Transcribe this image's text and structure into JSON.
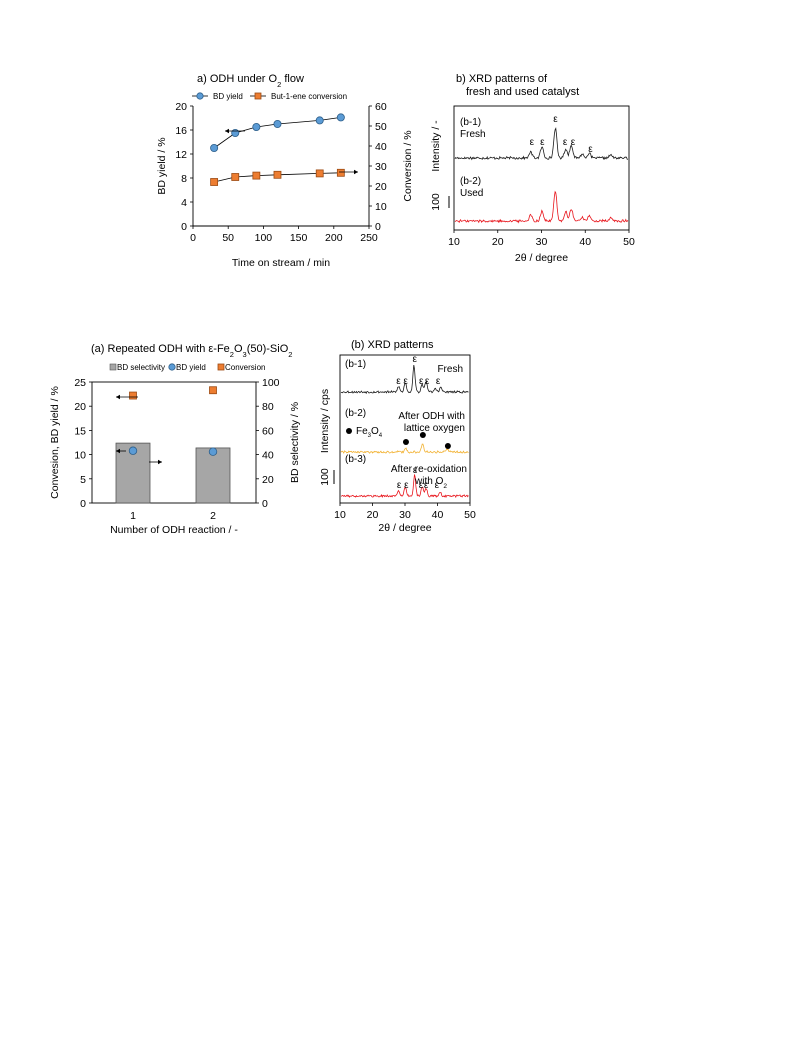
{
  "colors": {
    "blue": "#5b9bd5",
    "blue_stroke": "#2e5f8a",
    "orange": "#ed7d31",
    "orange_stroke": "#9c4a12",
    "bar": "#a6a6a6",
    "black_trace": "#1a1a1a",
    "red_trace": "#e8141b",
    "yellow_trace": "#f2b233",
    "gray_trace": "#555555"
  },
  "chart_data": [
    {
      "id": "top_a",
      "type": "line",
      "title_main": "a) ODH under O",
      "title_sub": "2",
      "title_end": " flow",
      "xlabel": "Time on stream / min",
      "ylabel": "BD yield / %",
      "y2label": "Conversion / %",
      "xlim": [
        0,
        250
      ],
      "xticks": [
        "0",
        "50",
        "100",
        "150",
        "200",
        "250"
      ],
      "ylim": [
        0,
        20
      ],
      "yticks": [
        "0",
        "4",
        "8",
        "12",
        "16",
        "20"
      ],
      "y2lim": [
        0,
        60
      ],
      "y2ticks": [
        "0",
        "10",
        "20",
        "30",
        "40",
        "50",
        "60"
      ],
      "series": [
        {
          "name": "BD yield",
          "axis": "left",
          "marker": "circle",
          "x": [
            30,
            60,
            90,
            120,
            180,
            210
          ],
          "values": [
            13.0,
            15.5,
            16.5,
            17.0,
            17.6,
            18.1
          ]
        },
        {
          "name": "But-1-ene conversion",
          "axis": "right",
          "marker": "square",
          "x": [
            30,
            60,
            90,
            120,
            180,
            210
          ],
          "values": [
            22.0,
            24.5,
            25.2,
            25.6,
            26.3,
            26.6
          ]
        }
      ]
    },
    {
      "id": "top_b",
      "type": "line",
      "title_line1": "b) XRD patterns of",
      "title_line2": "fresh and used catalyst",
      "xlabel": "2θ / degree",
      "ylabel": "Intensity / -",
      "scale_label": "100",
      "xlim": [
        10,
        50
      ],
      "xticks": [
        "10",
        "20",
        "30",
        "40",
        "50"
      ],
      "traces": [
        {
          "label_line1": "(b-1)",
          "label_line2": "Fresh",
          "color": "black",
          "peaks": [
            [
              27.5,
              6
            ],
            [
              30.1,
              11
            ],
            [
              33.2,
              30
            ],
            [
              35.6,
              9
            ],
            [
              36.9,
              13
            ],
            [
              39.4,
              4
            ],
            [
              41.0,
              5
            ],
            [
              46.0,
              3
            ]
          ]
        },
        {
          "label_line1": "(b-2)",
          "label_line2": "Used",
          "color": "red",
          "peaks": [
            [
              27.5,
              6
            ],
            [
              30.1,
              10
            ],
            [
              33.2,
              30
            ],
            [
              35.6,
              9
            ],
            [
              36.9,
              12
            ],
            [
              39.4,
              4
            ],
            [
              41.0,
              5
            ],
            [
              46.0,
              3
            ]
          ]
        }
      ],
      "eps_marks": [
        {
          "x": 27.8,
          "level": 0
        },
        {
          "x": 30.2,
          "level": 0
        },
        {
          "x": 33.2,
          "level": 1
        },
        {
          "x": 35.4,
          "level": 0
        },
        {
          "x": 37.2,
          "level": 0
        },
        {
          "x": 41.2,
          "level": 0
        }
      ],
      "eps_symbol": "ε"
    },
    {
      "id": "bottom_a",
      "type": "bar",
      "title_pre": "(a) Repeated ODH with ε-Fe",
      "title_s1": "2",
      "title_mid": "O",
      "title_s2": "3",
      "title_end": "(50)-SiO",
      "title_s3": "2",
      "categories": [
        "1",
        "2"
      ],
      "xlabel": "Number of ODH reaction / -",
      "ylabel": "Convesion, BD yield / %",
      "y2label": "BD selectivity / %",
      "ylim": [
        0,
        25
      ],
      "yticks": [
        "0",
        "5",
        "10",
        "15",
        "20",
        "25"
      ],
      "y2lim": [
        0,
        100
      ],
      "y2ticks": [
        "0",
        "20",
        "40",
        "60",
        "80",
        "100"
      ],
      "series": [
        {
          "name": "BD selectivity",
          "axis": "right",
          "mark": "bar",
          "values": [
            49.5,
            45.5
          ]
        },
        {
          "name": "BD yield",
          "axis": "left",
          "mark": "circle",
          "values": [
            10.8,
            10.6
          ]
        },
        {
          "name": "Conversion",
          "axis": "left",
          "mark": "square",
          "values": [
            22.2,
            23.3
          ]
        }
      ]
    },
    {
      "id": "bottom_b",
      "type": "line",
      "title": "(b) XRD patterns",
      "xlabel": "2θ / degree",
      "ylabel": "Intensity / cps",
      "scale_label": "100",
      "xlim": [
        10,
        50
      ],
      "xticks": [
        "10",
        "20",
        "30",
        "40",
        "50"
      ],
      "eps_symbol": "ε",
      "traces": [
        {
          "label": "(b-1)",
          "note_line1": "Fresh",
          "note_line2": "",
          "color": "black",
          "peaks": [
            [
              28.0,
              6
            ],
            [
              30.1,
              10
            ],
            [
              32.8,
              28
            ],
            [
              35.4,
              8
            ],
            [
              36.6,
              12
            ],
            [
              39.5,
              4
            ],
            [
              41.2,
              5
            ]
          ],
          "eps_marks": [
            {
              "x": 28.0,
              "level": 0
            },
            {
              "x": 30.2,
              "level": 0
            },
            {
              "x": 33.0,
              "level": 1
            },
            {
              "x": 35.0,
              "level": 0
            },
            {
              "x": 36.8,
              "level": 0
            },
            {
              "x": 40.2,
              "level": 0
            }
          ]
        },
        {
          "label": "(b-2)",
          "note_line1": "After ODH with",
          "note_line2": "lattice oxygen",
          "color": "yellow",
          "legend_text": "Fe",
          "legend_sub1": "3",
          "legend_mid": "O",
          "legend_sub2": "4",
          "peaks": [
            [
              30.2,
              4
            ],
            [
              35.5,
              9
            ],
            [
              43.2,
              3
            ]
          ],
          "dot_marks": [
            30.3,
            35.5,
            43.2
          ]
        },
        {
          "label": "(b-3)",
          "note_line1": "After re-oxidation",
          "note_line2": "with O",
          "note_sub": "2",
          "color": "red",
          "peaks": [
            [
              28.0,
              6
            ],
            [
              30.1,
              9
            ],
            [
              33.0,
              22
            ],
            [
              35.4,
              10
            ],
            [
              36.6,
              8
            ],
            [
              41.0,
              4
            ]
          ],
          "eps_marks": [
            {
              "x": 28.2,
              "level": 0
            },
            {
              "x": 30.4,
              "level": 0
            },
            {
              "x": 33.1,
              "level": 1
            },
            {
              "x": 34.9,
              "level": 0
            },
            {
              "x": 36.5,
              "level": 0
            },
            {
              "x": 39.8,
              "level": 0
            }
          ]
        }
      ]
    }
  ]
}
